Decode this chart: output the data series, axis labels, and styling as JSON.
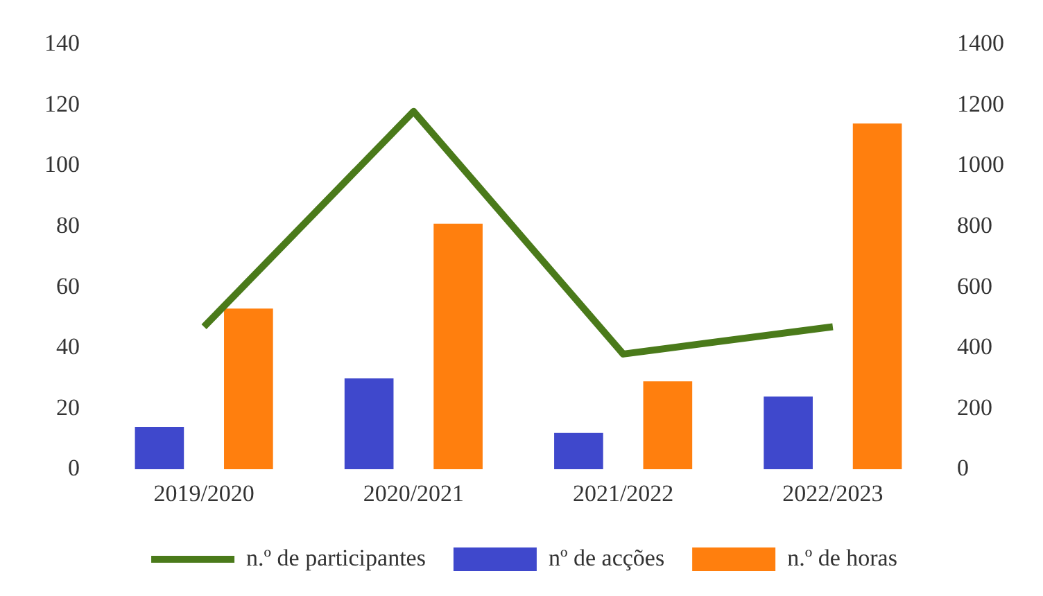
{
  "chart_data": {
    "type": "bar",
    "categories": [
      "2019/2020",
      "2020/2021",
      "2021/2022",
      "2022/2023"
    ],
    "series": [
      {
        "name": "nº de acções",
        "color": "#3f48cc",
        "values": [
          14,
          30,
          12,
          24
        ]
      },
      {
        "name": "n.º de horas",
        "color": "#ff7f0e",
        "values": [
          53,
          81,
          29,
          114
        ]
      },
      {
        "name": "n.º de participantes",
        "type": "line",
        "axis": "y2",
        "color": "#4a7a1a",
        "values": [
          470,
          1180,
          380,
          470
        ]
      }
    ],
    "ylim": [
      0,
      140
    ],
    "yticks": [
      0,
      20,
      40,
      60,
      80,
      100,
      120,
      140
    ],
    "y2lim": [
      0,
      1400
    ],
    "y2ticks": [
      0,
      200,
      400,
      600,
      800,
      1000,
      1200,
      1400
    ],
    "grid": false,
    "legend": "bottom",
    "marker": "none",
    "line_style": "solid"
  }
}
